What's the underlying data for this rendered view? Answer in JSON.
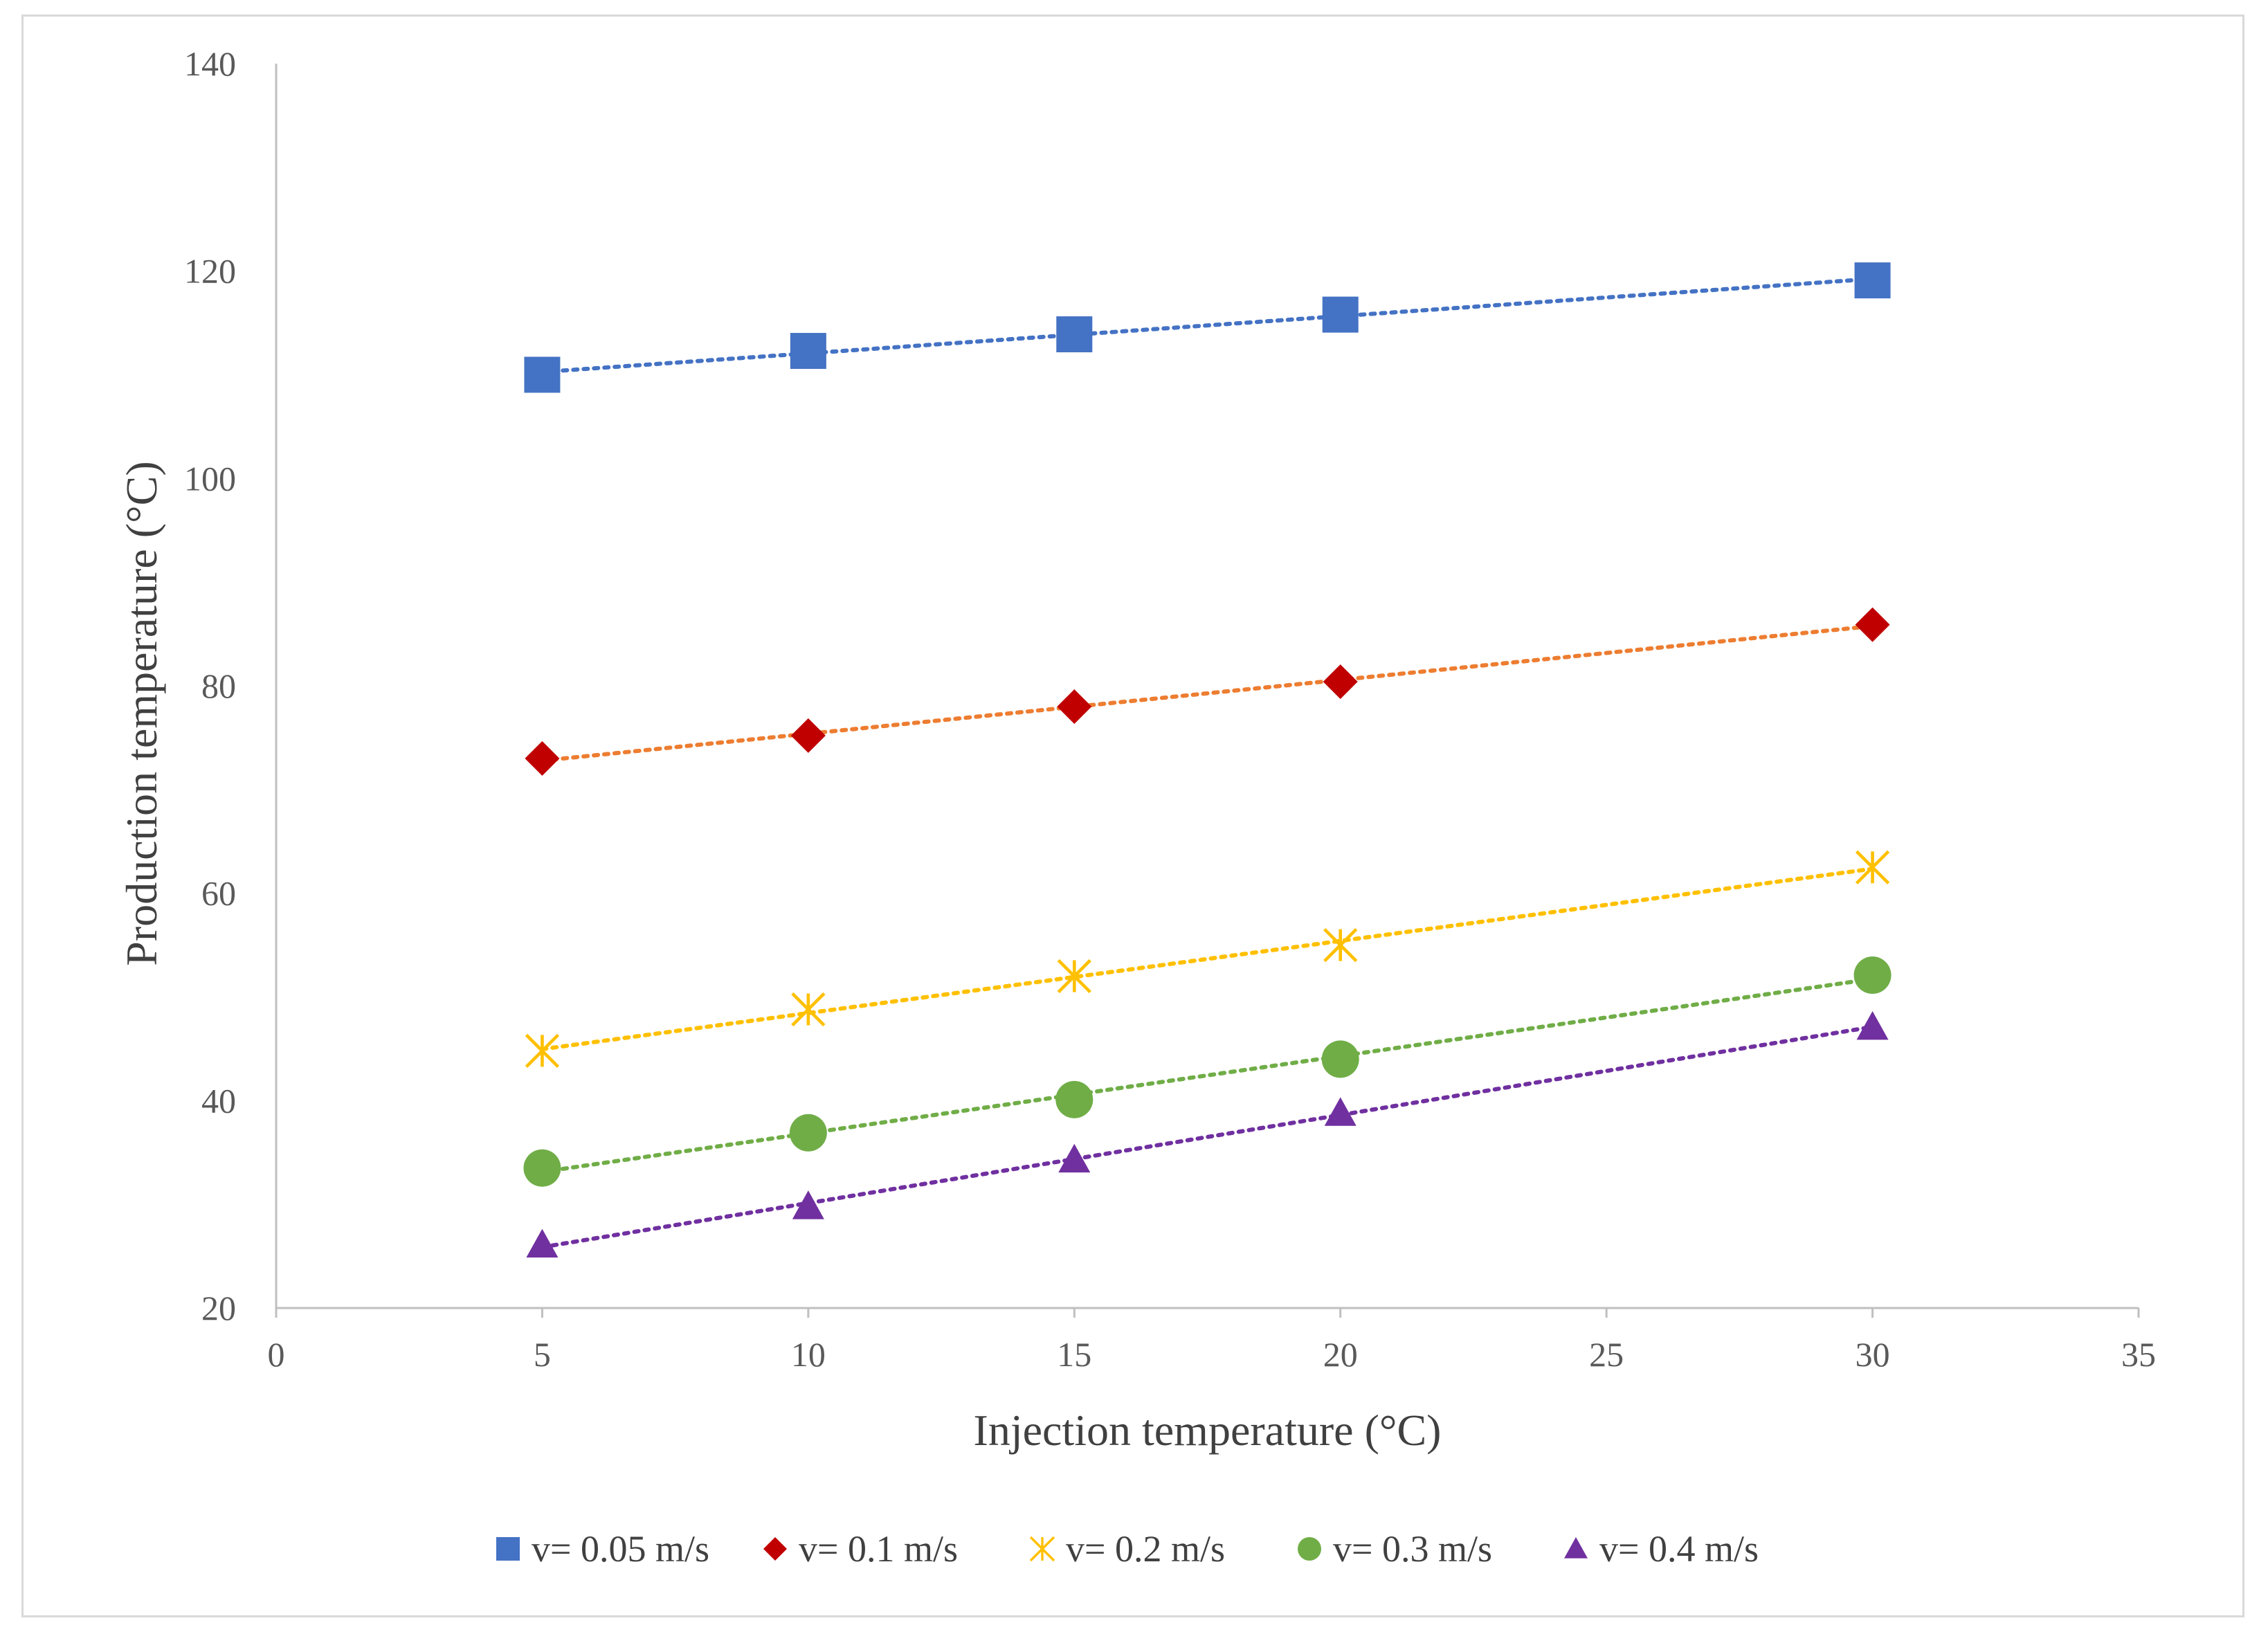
{
  "chart_data": {
    "type": "scatter",
    "title": "",
    "xlabel": "Injection temperature (°C)",
    "ylabel": "Production temperature (°C)",
    "xlim": [
      0,
      35
    ],
    "ylim": [
      20,
      140
    ],
    "xticks": [
      0,
      5,
      10,
      15,
      20,
      25,
      30,
      35
    ],
    "yticks": [
      20,
      40,
      60,
      80,
      100,
      120,
      140
    ],
    "grid": false,
    "legend_position": "bottom",
    "trendlines": "linear, dotted",
    "series": [
      {
        "name": "v= 0.05 m/s",
        "marker": "square",
        "color": "#4472c4",
        "trend_color": "#4472c4",
        "x": [
          5,
          10,
          15,
          20,
          30
        ],
        "values": [
          110,
          112.3,
          113.9,
          115.8,
          119.1
        ]
      },
      {
        "name": "v= 0.1 m/s",
        "marker": "diamond",
        "color": "#c00000",
        "trend_color": "#ed7d31",
        "x": [
          5,
          10,
          15,
          20,
          30
        ],
        "values": [
          73,
          75.2,
          78,
          80.4,
          85.9
        ]
      },
      {
        "name": "v= 0.2 m/s",
        "marker": "asterisk",
        "color": "#ffc000",
        "trend_color": "#ffc000",
        "x": [
          5,
          10,
          15,
          20,
          30
        ],
        "values": [
          44.8,
          48.8,
          52,
          55,
          62.5
        ]
      },
      {
        "name": "v= 0.3 m/s",
        "marker": "circle",
        "color": "#70ad47",
        "trend_color": "#70ad47",
        "x": [
          5,
          10,
          15,
          20,
          30
        ],
        "values": [
          33.5,
          36.9,
          40.1,
          44,
          52.1
        ]
      },
      {
        "name": "v= 0.4 m/s",
        "marker": "triangle",
        "color": "#7030a0",
        "trend_color": "#7030a0",
        "x": [
          5,
          10,
          15,
          20,
          30
        ],
        "values": [
          26.1,
          29.8,
          34.3,
          38.8,
          47.1
        ]
      }
    ]
  }
}
